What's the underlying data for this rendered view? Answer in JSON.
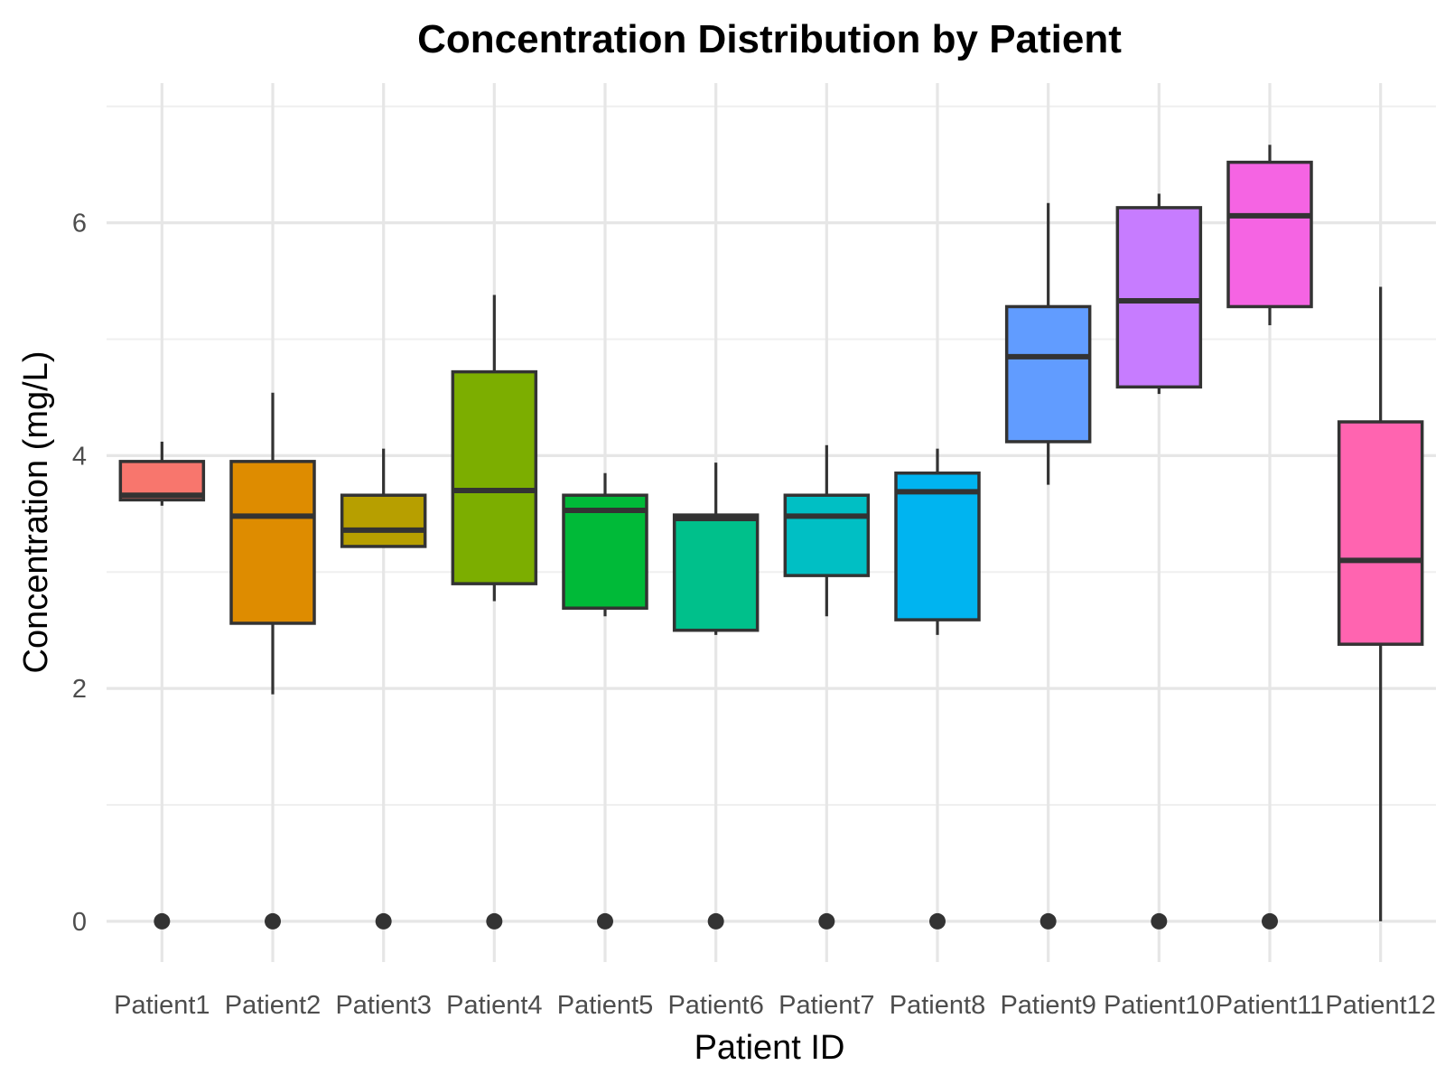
{
  "chart_data": {
    "type": "boxplot",
    "title": "Concentration Distribution by Patient",
    "xlabel": "Patient ID",
    "ylabel": "Concentration (mg/L)",
    "ylim": [
      -0.35,
      7.2
    ],
    "yticks": [
      0,
      2,
      4,
      6
    ],
    "grid": true,
    "legend": "none",
    "categories": [
      "Patient1",
      "Patient2",
      "Patient3",
      "Patient4",
      "Patient5",
      "Patient6",
      "Patient7",
      "Patient8",
      "Patient9",
      "Patient10",
      "Patient11",
      "Patient12"
    ],
    "colors": [
      "#F8766D",
      "#DE8C00",
      "#B79F00",
      "#7CAE00",
      "#00BA38",
      "#00C08B",
      "#00BFC4",
      "#00B4F0",
      "#619CFF",
      "#C77CFF",
      "#F564E3",
      "#FF64B0"
    ],
    "boxes": [
      {
        "min": 3.57,
        "q1": 3.62,
        "median": 3.66,
        "q3": 3.95,
        "max": 4.12,
        "outliers": [
          0
        ]
      },
      {
        "min": 1.95,
        "q1": 2.56,
        "median": 3.48,
        "q3": 3.95,
        "max": 4.54,
        "outliers": [
          0
        ]
      },
      {
        "min": 3.22,
        "q1": 3.22,
        "median": 3.36,
        "q3": 3.66,
        "max": 4.06,
        "outliers": [
          0
        ]
      },
      {
        "min": 2.75,
        "q1": 2.9,
        "median": 3.7,
        "q3": 4.72,
        "max": 5.38,
        "outliers": [
          0
        ]
      },
      {
        "min": 2.62,
        "q1": 2.69,
        "median": 3.53,
        "q3": 3.66,
        "max": 3.85,
        "outliers": [
          0
        ]
      },
      {
        "min": 2.46,
        "q1": 2.5,
        "median": 3.46,
        "q3": 3.49,
        "max": 3.94,
        "outliers": [
          0
        ]
      },
      {
        "min": 2.62,
        "q1": 2.97,
        "median": 3.48,
        "q3": 3.66,
        "max": 4.09,
        "outliers": [
          0
        ]
      },
      {
        "min": 2.46,
        "q1": 2.59,
        "median": 3.69,
        "q3": 3.85,
        "max": 4.06,
        "outliers": [
          0
        ]
      },
      {
        "min": 3.75,
        "q1": 4.12,
        "median": 4.85,
        "q3": 5.28,
        "max": 6.17,
        "outliers": [
          0
        ]
      },
      {
        "min": 4.53,
        "q1": 4.59,
        "median": 5.33,
        "q3": 6.13,
        "max": 6.25,
        "outliers": [
          0
        ]
      },
      {
        "min": 5.12,
        "q1": 5.28,
        "median": 6.06,
        "q3": 6.52,
        "max": 6.67,
        "outliers": [
          0
        ]
      },
      {
        "min": 0,
        "q1": 2.38,
        "median": 3.1,
        "q3": 4.29,
        "max": 5.45,
        "outliers": []
      }
    ]
  }
}
